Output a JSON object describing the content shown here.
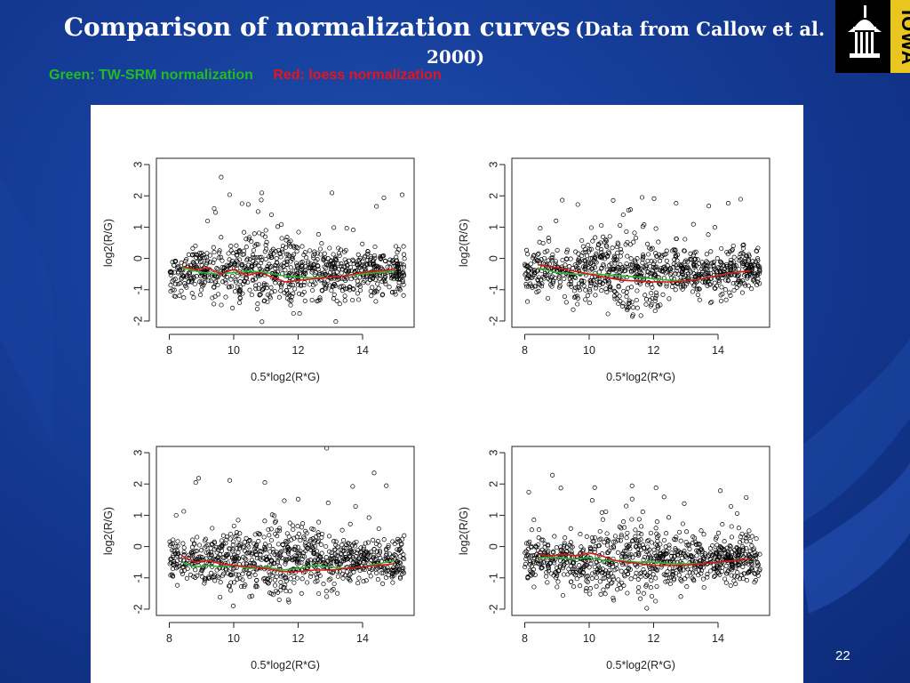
{
  "slide": {
    "title_main": "Comparison of normalization curves",
    "title_cite": "(Data from Callow et al.",
    "title_cite_cont": "2000)",
    "caption_green": "Green: TW-SRM  normalization",
    "caption_red": "Red: loess normalization",
    "logo_text": "IOWA",
    "page_number": "22"
  },
  "colors": {
    "background": "#153c97",
    "green_curve": "#2db52d",
    "red_curve": "#d81818",
    "points": "#000000",
    "logo_gold": "#e9c51f"
  },
  "chart_data": [
    {
      "type": "scatter",
      "xlabel": "0.5*log2(R*G)",
      "ylabel": "log2(R/G)",
      "xlim": [
        7.6,
        15.6
      ],
      "ylim": [
        -2.2,
        3.2
      ],
      "xticks": [
        "8",
        "10",
        "12",
        "14"
      ],
      "yticks": [
        "-2",
        "-1",
        "0",
        "1",
        "2",
        "3"
      ],
      "series": [
        {
          "x": [
            8.4,
            9.0,
            9.5,
            10.0,
            10.5,
            11.0,
            11.5,
            12.0,
            12.5,
            13.0,
            13.5,
            14.0,
            14.5,
            15.0
          ],
          "y": [
            -0.3,
            -0.45,
            -0.5,
            -0.45,
            -0.4,
            -0.45,
            -0.55,
            -0.6,
            -0.62,
            -0.6,
            -0.55,
            -0.5,
            -0.45,
            -0.4
          ]
        },
        {
          "x": [
            8.4,
            8.8,
            9.2,
            9.6,
            10.0,
            10.4,
            10.8,
            11.2,
            11.6,
            12.0,
            12.5,
            13.0,
            13.5,
            14.0,
            14.5,
            15.0
          ],
          "y": [
            -0.25,
            -0.35,
            -0.3,
            -0.5,
            -0.35,
            -0.55,
            -0.45,
            -0.6,
            -0.75,
            -0.7,
            -0.65,
            -0.6,
            -0.55,
            -0.45,
            -0.4,
            -0.35
          ]
        }
      ]
    },
    {
      "type": "scatter",
      "xlabel": "0.5*log2(R*G)",
      "ylabel": "log2(R/G)",
      "xlim": [
        7.6,
        15.6
      ],
      "ylim": [
        -2.2,
        3.2
      ],
      "xticks": [
        "8",
        "10",
        "12",
        "14"
      ],
      "yticks": [
        "-2",
        "-1",
        "0",
        "1",
        "2",
        "3"
      ],
      "series": [
        {
          "x": [
            8.4,
            9.0,
            9.5,
            10.0,
            10.5,
            11.0,
            11.5,
            12.0,
            12.5,
            13.0,
            13.5,
            14.0,
            14.5,
            15.0
          ],
          "y": [
            -0.3,
            -0.45,
            -0.5,
            -0.5,
            -0.52,
            -0.55,
            -0.6,
            -0.65,
            -0.7,
            -0.72,
            -0.65,
            -0.55,
            -0.45,
            -0.4
          ]
        },
        {
          "x": [
            8.4,
            9.0,
            9.5,
            10.0,
            10.5,
            11.0,
            11.5,
            12.0,
            12.5,
            13.0,
            13.5,
            14.0,
            14.5,
            15.0
          ],
          "y": [
            -0.2,
            -0.3,
            -0.4,
            -0.5,
            -0.6,
            -0.7,
            -0.72,
            -0.75,
            -0.75,
            -0.72,
            -0.65,
            -0.55,
            -0.45,
            -0.4
          ]
        }
      ]
    },
    {
      "type": "scatter",
      "xlabel": "0.5*log2(R*G)",
      "ylabel": "log2(R/G)",
      "xlim": [
        7.6,
        15.6
      ],
      "ylim": [
        -2.2,
        3.2
      ],
      "xticks": [
        "8",
        "10",
        "12",
        "14"
      ],
      "yticks": [
        "-2",
        "-1",
        "0",
        "1",
        "2",
        "3"
      ],
      "series": [
        {
          "x": [
            8.4,
            8.8,
            9.2,
            9.6,
            10.0,
            10.5,
            11.0,
            11.5,
            12.0,
            12.5,
            13.0,
            13.5,
            14.0,
            14.5,
            15.0
          ],
          "y": [
            -0.5,
            -0.65,
            -0.6,
            -0.65,
            -0.6,
            -0.7,
            -0.65,
            -0.75,
            -0.7,
            -0.6,
            -0.65,
            -0.7,
            -0.65,
            -0.55,
            -0.45
          ]
        },
        {
          "x": [
            8.4,
            8.8,
            9.2,
            9.6,
            10.0,
            10.5,
            11.0,
            11.5,
            12.0,
            12.5,
            13.0,
            13.5,
            14.0,
            14.5,
            15.0
          ],
          "y": [
            -0.3,
            -0.5,
            -0.45,
            -0.55,
            -0.6,
            -0.65,
            -0.7,
            -0.8,
            -0.8,
            -0.75,
            -0.75,
            -0.7,
            -0.65,
            -0.6,
            -0.55
          ]
        }
      ]
    },
    {
      "type": "scatter",
      "xlabel": "0.5*log2(R*G)",
      "ylabel": "log2(R/G)",
      "xlim": [
        7.6,
        15.6
      ],
      "ylim": [
        -2.2,
        3.2
      ],
      "xticks": [
        "8",
        "10",
        "12",
        "14"
      ],
      "yticks": [
        "-2",
        "-1",
        "0",
        "1",
        "2",
        "3"
      ],
      "series": [
        {
          "x": [
            8.4,
            9.0,
            9.5,
            10.0,
            10.5,
            11.0,
            11.5,
            12.0,
            12.5,
            13.0,
            13.5,
            14.0,
            14.5,
            15.0
          ],
          "y": [
            -0.35,
            -0.35,
            -0.4,
            -0.35,
            -0.45,
            -0.45,
            -0.5,
            -0.5,
            -0.55,
            -0.55,
            -0.55,
            -0.5,
            -0.45,
            -0.4
          ]
        },
        {
          "x": [
            8.4,
            8.8,
            9.2,
            9.6,
            10.0,
            10.4,
            10.8,
            11.2,
            11.6,
            12.0,
            12.5,
            13.0,
            13.5,
            14.0,
            14.5,
            15.0
          ],
          "y": [
            -0.25,
            -0.3,
            -0.25,
            -0.3,
            -0.2,
            -0.3,
            -0.45,
            -0.5,
            -0.55,
            -0.6,
            -0.6,
            -0.6,
            -0.55,
            -0.5,
            -0.45,
            -0.4
          ]
        }
      ]
    }
  ]
}
